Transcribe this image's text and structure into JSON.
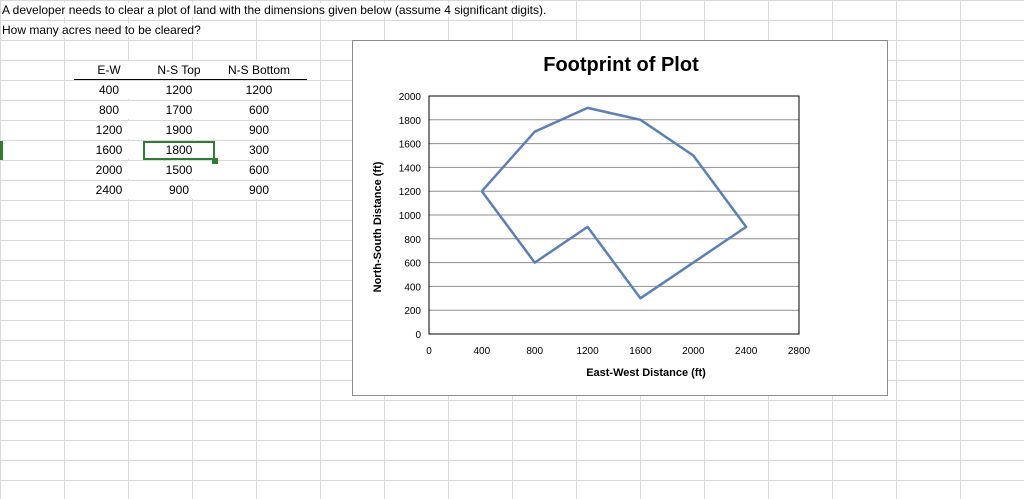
{
  "prompt": {
    "line1": "A developer needs to clear a plot of land with the dimensions given below (assume 4 significant digits).",
    "line2": "How many acres need to be cleared?"
  },
  "table": {
    "headers": [
      "E-W",
      "N-S Top",
      "N-S Bottom"
    ],
    "rows": [
      [
        "400",
        "1200",
        "1200"
      ],
      [
        "800",
        "1700",
        "600"
      ],
      [
        "1200",
        "1900",
        "900"
      ],
      [
        "1600",
        "1800",
        "300"
      ],
      [
        "2000",
        "1500",
        "600"
      ],
      [
        "2400",
        "900",
        "900"
      ]
    ],
    "selected_cell": "1800"
  },
  "chart_data": {
    "type": "line",
    "title": "Footprint of Plot",
    "xlabel": "East-West Distance (ft)",
    "ylabel": "North-South Distance (ft)",
    "xlim": [
      0,
      2800
    ],
    "ylim": [
      0,
      2000
    ],
    "x_ticks": [
      0,
      400,
      800,
      1200,
      1600,
      2000,
      2400,
      2800
    ],
    "y_ticks": [
      0,
      200,
      400,
      600,
      800,
      1000,
      1200,
      1400,
      1600,
      1800,
      2000
    ],
    "grid": true,
    "line_color": "#5b7fb6",
    "series": [
      {
        "x": [
          400,
          800,
          1200,
          1600,
          2000,
          2400,
          1600,
          1200,
          800,
          400
        ],
        "y": [
          1200,
          1700,
          1900,
          1800,
          1500,
          900,
          300,
          900,
          600,
          1200
        ]
      }
    ]
  }
}
